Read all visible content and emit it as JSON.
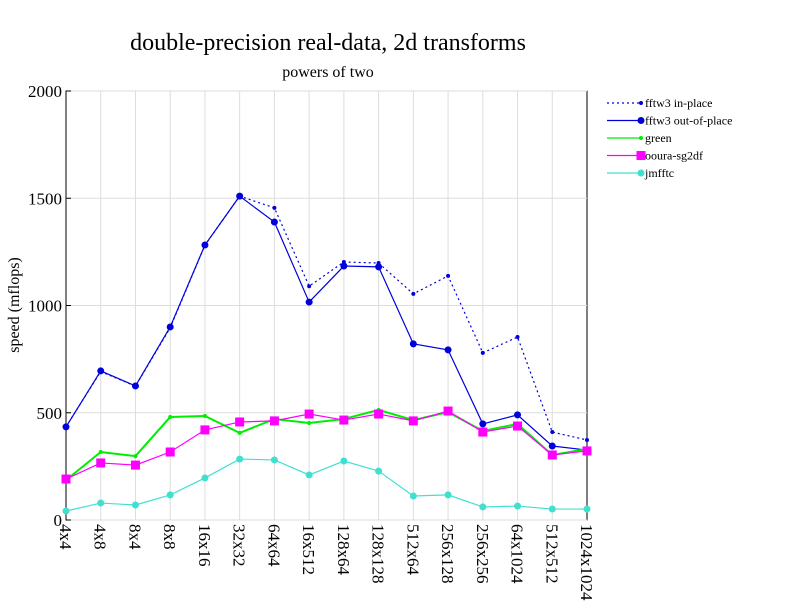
{
  "chart_data": {
    "type": "line",
    "title": "double-precision real-data, 2d transforms",
    "subtitle": "powers of two",
    "y_label": "speed (mflops)",
    "categories": [
      "4x4",
      "4x8",
      "8x4",
      "8x8",
      "16x16",
      "32x32",
      "64x64",
      "16x512",
      "128x64",
      "128x128",
      "512x64",
      "256x128",
      "256x256",
      "64x1024",
      "512x512",
      "1024x1024"
    ],
    "ylim": [
      0,
      2000
    ],
    "yticks": [
      0,
      500,
      1000,
      1500,
      2000
    ],
    "grid": true,
    "legend": "right",
    "series": [
      {
        "name": "fftw3 in-place",
        "color": "#0000dd",
        "marker": "dot",
        "dash": true,
        "values": [
          435,
          692,
          624,
          896,
          1281,
          1510,
          1455,
          1090,
          1203,
          1198,
          1054,
          1138,
          779,
          853,
          410,
          373
        ]
      },
      {
        "name": "fftw3 out-of-place",
        "color": "#0000dd",
        "marker": "circle",
        "dash": false,
        "values": [
          434,
          695,
          625,
          900,
          1282,
          1510,
          1389,
          1016,
          1184,
          1180,
          821,
          793,
          448,
          490,
          345,
          326
        ]
      },
      {
        "name": "green",
        "color": "#00ee00",
        "marker": "dot",
        "dash": false,
        "values": [
          186,
          317,
          298,
          480,
          485,
          406,
          471,
          452,
          471,
          513,
          466,
          503,
          415,
          448,
          303,
          331
        ]
      },
      {
        "name": "ooura-sg2df",
        "color": "#ff00ff",
        "marker": "square",
        "dash": false,
        "values": [
          191,
          266,
          256,
          317,
          420,
          457,
          462,
          494,
          466,
          494,
          462,
          508,
          410,
          438,
          303,
          322
        ]
      },
      {
        "name": "jmfftc",
        "color": "#40e0d0",
        "marker": "circle",
        "dash": false,
        "values": [
          42,
          79,
          70,
          117,
          196,
          284,
          280,
          210,
          275,
          228,
          112,
          117,
          61,
          65,
          51,
          51
        ]
      }
    ]
  }
}
